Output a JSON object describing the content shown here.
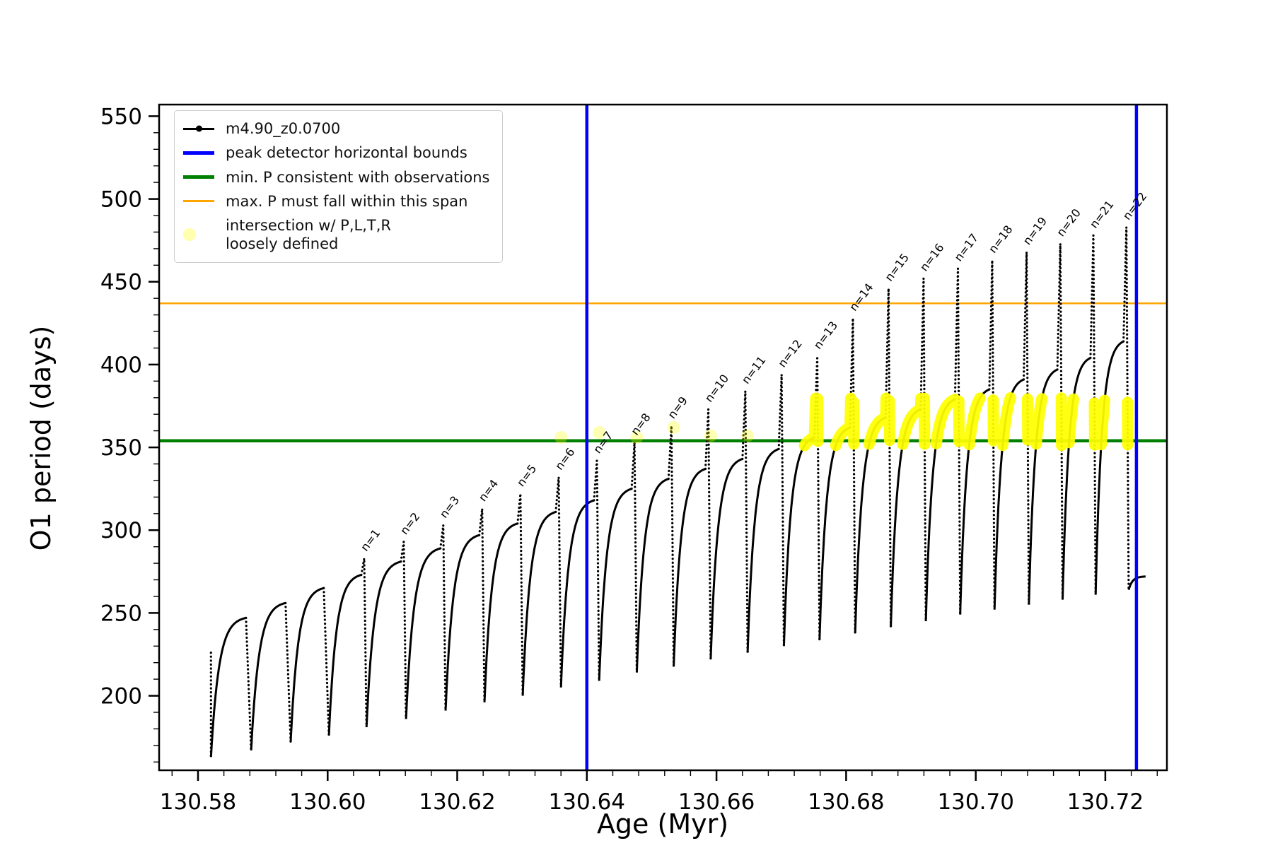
{
  "figure": {
    "xlabel": "Age (Myr)",
    "ylabel": "O1 period (days)"
  },
  "legend": {
    "items": [
      {
        "label": "m4.90_z0.0700",
        "color": "#000000",
        "type": "line-dot"
      },
      {
        "label": "peak detector horizontal bounds",
        "color": "#0000ff",
        "type": "thick-line"
      },
      {
        "label": "min. P consistent with observations",
        "color": "#008000",
        "type": "thick-line"
      },
      {
        "label": "max. P must fall within this span",
        "color": "#ffa500",
        "type": "line"
      },
      {
        "label": "intersection w/ P,L,T,R\nloosely defined",
        "color": "#ffff99",
        "type": "dot"
      }
    ]
  },
  "chart_data": {
    "type": "line",
    "title": "",
    "xlabel": "Age (Myr)",
    "ylabel": "O1 period (days)",
    "series_name": "m4.90_z0.0700",
    "xlim": [
      130.574,
      130.7295
    ],
    "ylim": [
      155,
      557
    ],
    "x_ticks": [
      130.58,
      130.6,
      130.62,
      130.64,
      130.66,
      130.68,
      130.7,
      130.72
    ],
    "y_ticks": [
      200,
      250,
      300,
      350,
      400,
      450,
      500,
      550
    ],
    "x_minor_step": 0.004,
    "y_minor_step": 10,
    "grid": false,
    "legend_position": "upper-left",
    "line_color": "#000000",
    "vlines": {
      "name": "peak-detector-bounds",
      "x": [
        130.64,
        130.7248
      ],
      "color": "#0000ff",
      "width": 4.5
    },
    "hlines": [
      {
        "name": "max-period-line",
        "y": 437,
        "color": "#ffa500",
        "width": 2.5
      },
      {
        "name": "min-period-line",
        "y": 354,
        "color": "#008000",
        "width": 4.5
      }
    ],
    "x_start": 130.582,
    "first_point": {
      "x": 130.582,
      "y": 226
    },
    "cycles": [
      {
        "end": 130.5882,
        "trough": 163,
        "plateau": 247,
        "spike": null,
        "label": null
      },
      {
        "end": 130.5943,
        "trough": 167,
        "plateau": 256,
        "spike": null,
        "label": null
      },
      {
        "end": 130.6002,
        "trough": 172,
        "plateau": 265,
        "spike": null,
        "label": null
      },
      {
        "end": 130.606,
        "trough": 176,
        "plateau": 273,
        "spike": 283,
        "label": "n=1"
      },
      {
        "end": 130.6121,
        "trough": 181,
        "plateau": 281,
        "spike": 293,
        "label": "n=2"
      },
      {
        "end": 130.6182,
        "trough": 186,
        "plateau": 289,
        "spike": 303,
        "label": "n=3"
      },
      {
        "end": 130.6242,
        "trough": 191,
        "plateau": 297,
        "spike": 313,
        "label": "n=4"
      },
      {
        "end": 130.6301,
        "trough": 196,
        "plateau": 304,
        "spike": 322,
        "label": "n=5"
      },
      {
        "end": 130.636,
        "trough": 200,
        "plateau": 311,
        "spike": 332,
        "label": "n=6"
      },
      {
        "end": 130.6419,
        "trough": 205,
        "plateau": 318,
        "spike": 342,
        "label": "n=7"
      },
      {
        "end": 130.6477,
        "trough": 209,
        "plateau": 325,
        "spike": 353,
        "label": "n=8"
      },
      {
        "end": 130.6534,
        "trough": 214,
        "plateau": 331,
        "spike": 363,
        "label": "n=9"
      },
      {
        "end": 130.6591,
        "trough": 218,
        "plateau": 337,
        "spike": 373,
        "label": "n=10"
      },
      {
        "end": 130.6648,
        "trough": 222,
        "plateau": 343,
        "spike": 384,
        "label": "n=11"
      },
      {
        "end": 130.6704,
        "trough": 226,
        "plateau": 349,
        "spike": 394,
        "label": "n=12"
      },
      {
        "end": 130.6759,
        "trough": 230,
        "plateau": 356,
        "spike": 405,
        "label": "n=13"
      },
      {
        "end": 130.6814,
        "trough": 234,
        "plateau": 362,
        "spike": 428,
        "label": "n=14"
      },
      {
        "end": 130.6869,
        "trough": 238,
        "plateau": 368,
        "spike": 446,
        "label": "n=15"
      },
      {
        "end": 130.6923,
        "trough": 242,
        "plateau": 373,
        "spike": 452,
        "label": "n=16"
      },
      {
        "end": 130.6976,
        "trough": 245,
        "plateau": 379,
        "spike": 458,
        "label": "n=17"
      },
      {
        "end": 130.7029,
        "trough": 249,
        "plateau": 385,
        "spike": 463,
        "label": "n=18"
      },
      {
        "end": 130.7082,
        "trough": 252,
        "plateau": 391,
        "spike": 468,
        "label": "n=19"
      },
      {
        "end": 130.7134,
        "trough": 255,
        "plateau": 397,
        "spike": 473,
        "label": "n=20"
      },
      {
        "end": 130.7185,
        "trough": 258,
        "plateau": 404,
        "spike": 478,
        "label": "n=21"
      },
      {
        "end": 130.7236,
        "trough": 261,
        "plateau": 414,
        "spike": 483,
        "label": "n=22"
      },
      {
        "end": 130.7262,
        "trough": 264,
        "plateau": 272,
        "spike": null,
        "label": null,
        "tail": true
      }
    ],
    "intersection_band": {
      "color": "#ffff00",
      "y_min": 351,
      "y_max": 380,
      "x_min": 130.673
    },
    "faint_intersections": [
      {
        "x": 130.636,
        "y": 356
      },
      {
        "x": 130.6419,
        "y": 359
      },
      {
        "x": 130.6477,
        "y": 356
      },
      {
        "x": 130.6534,
        "y": 362
      },
      {
        "x": 130.6591,
        "y": 357
      },
      {
        "x": 130.6648,
        "y": 357
      }
    ]
  }
}
